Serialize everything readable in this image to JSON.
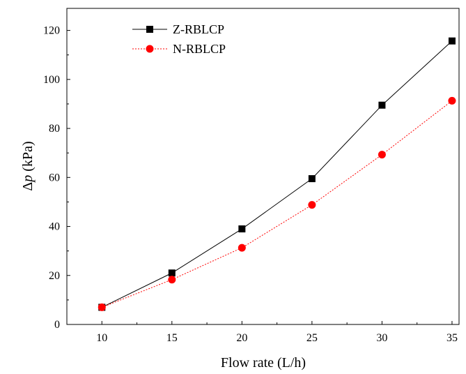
{
  "chart_data": {
    "type": "line",
    "title": "",
    "xlabel": "Flow rate (L/h)",
    "ylabel_symbol": "Δ",
    "ylabel_var": "p",
    "ylabel_unit": " (kPa)",
    "x": [
      10,
      15,
      20,
      25,
      30,
      35
    ],
    "xlim": [
      7.5,
      35.5
    ],
    "ylim": [
      0,
      129
    ],
    "xticks": [
      10,
      15,
      20,
      25,
      30,
      35
    ],
    "yticks": [
      0,
      20,
      40,
      60,
      80,
      100,
      120
    ],
    "grid": false,
    "legend_position": "top-left",
    "series": [
      {
        "name": "Z-RBLCP",
        "values": [
          7,
          21,
          39,
          59.5,
          89.5,
          115.7
        ],
        "color": "#000000",
        "line_style": "solid",
        "marker": "square"
      },
      {
        "name": "N-RBLCP",
        "values": [
          7,
          18.3,
          31.3,
          48.8,
          69.3,
          91.3
        ],
        "color": "#ff0000",
        "line_style": "dotted",
        "marker": "circle"
      }
    ]
  }
}
